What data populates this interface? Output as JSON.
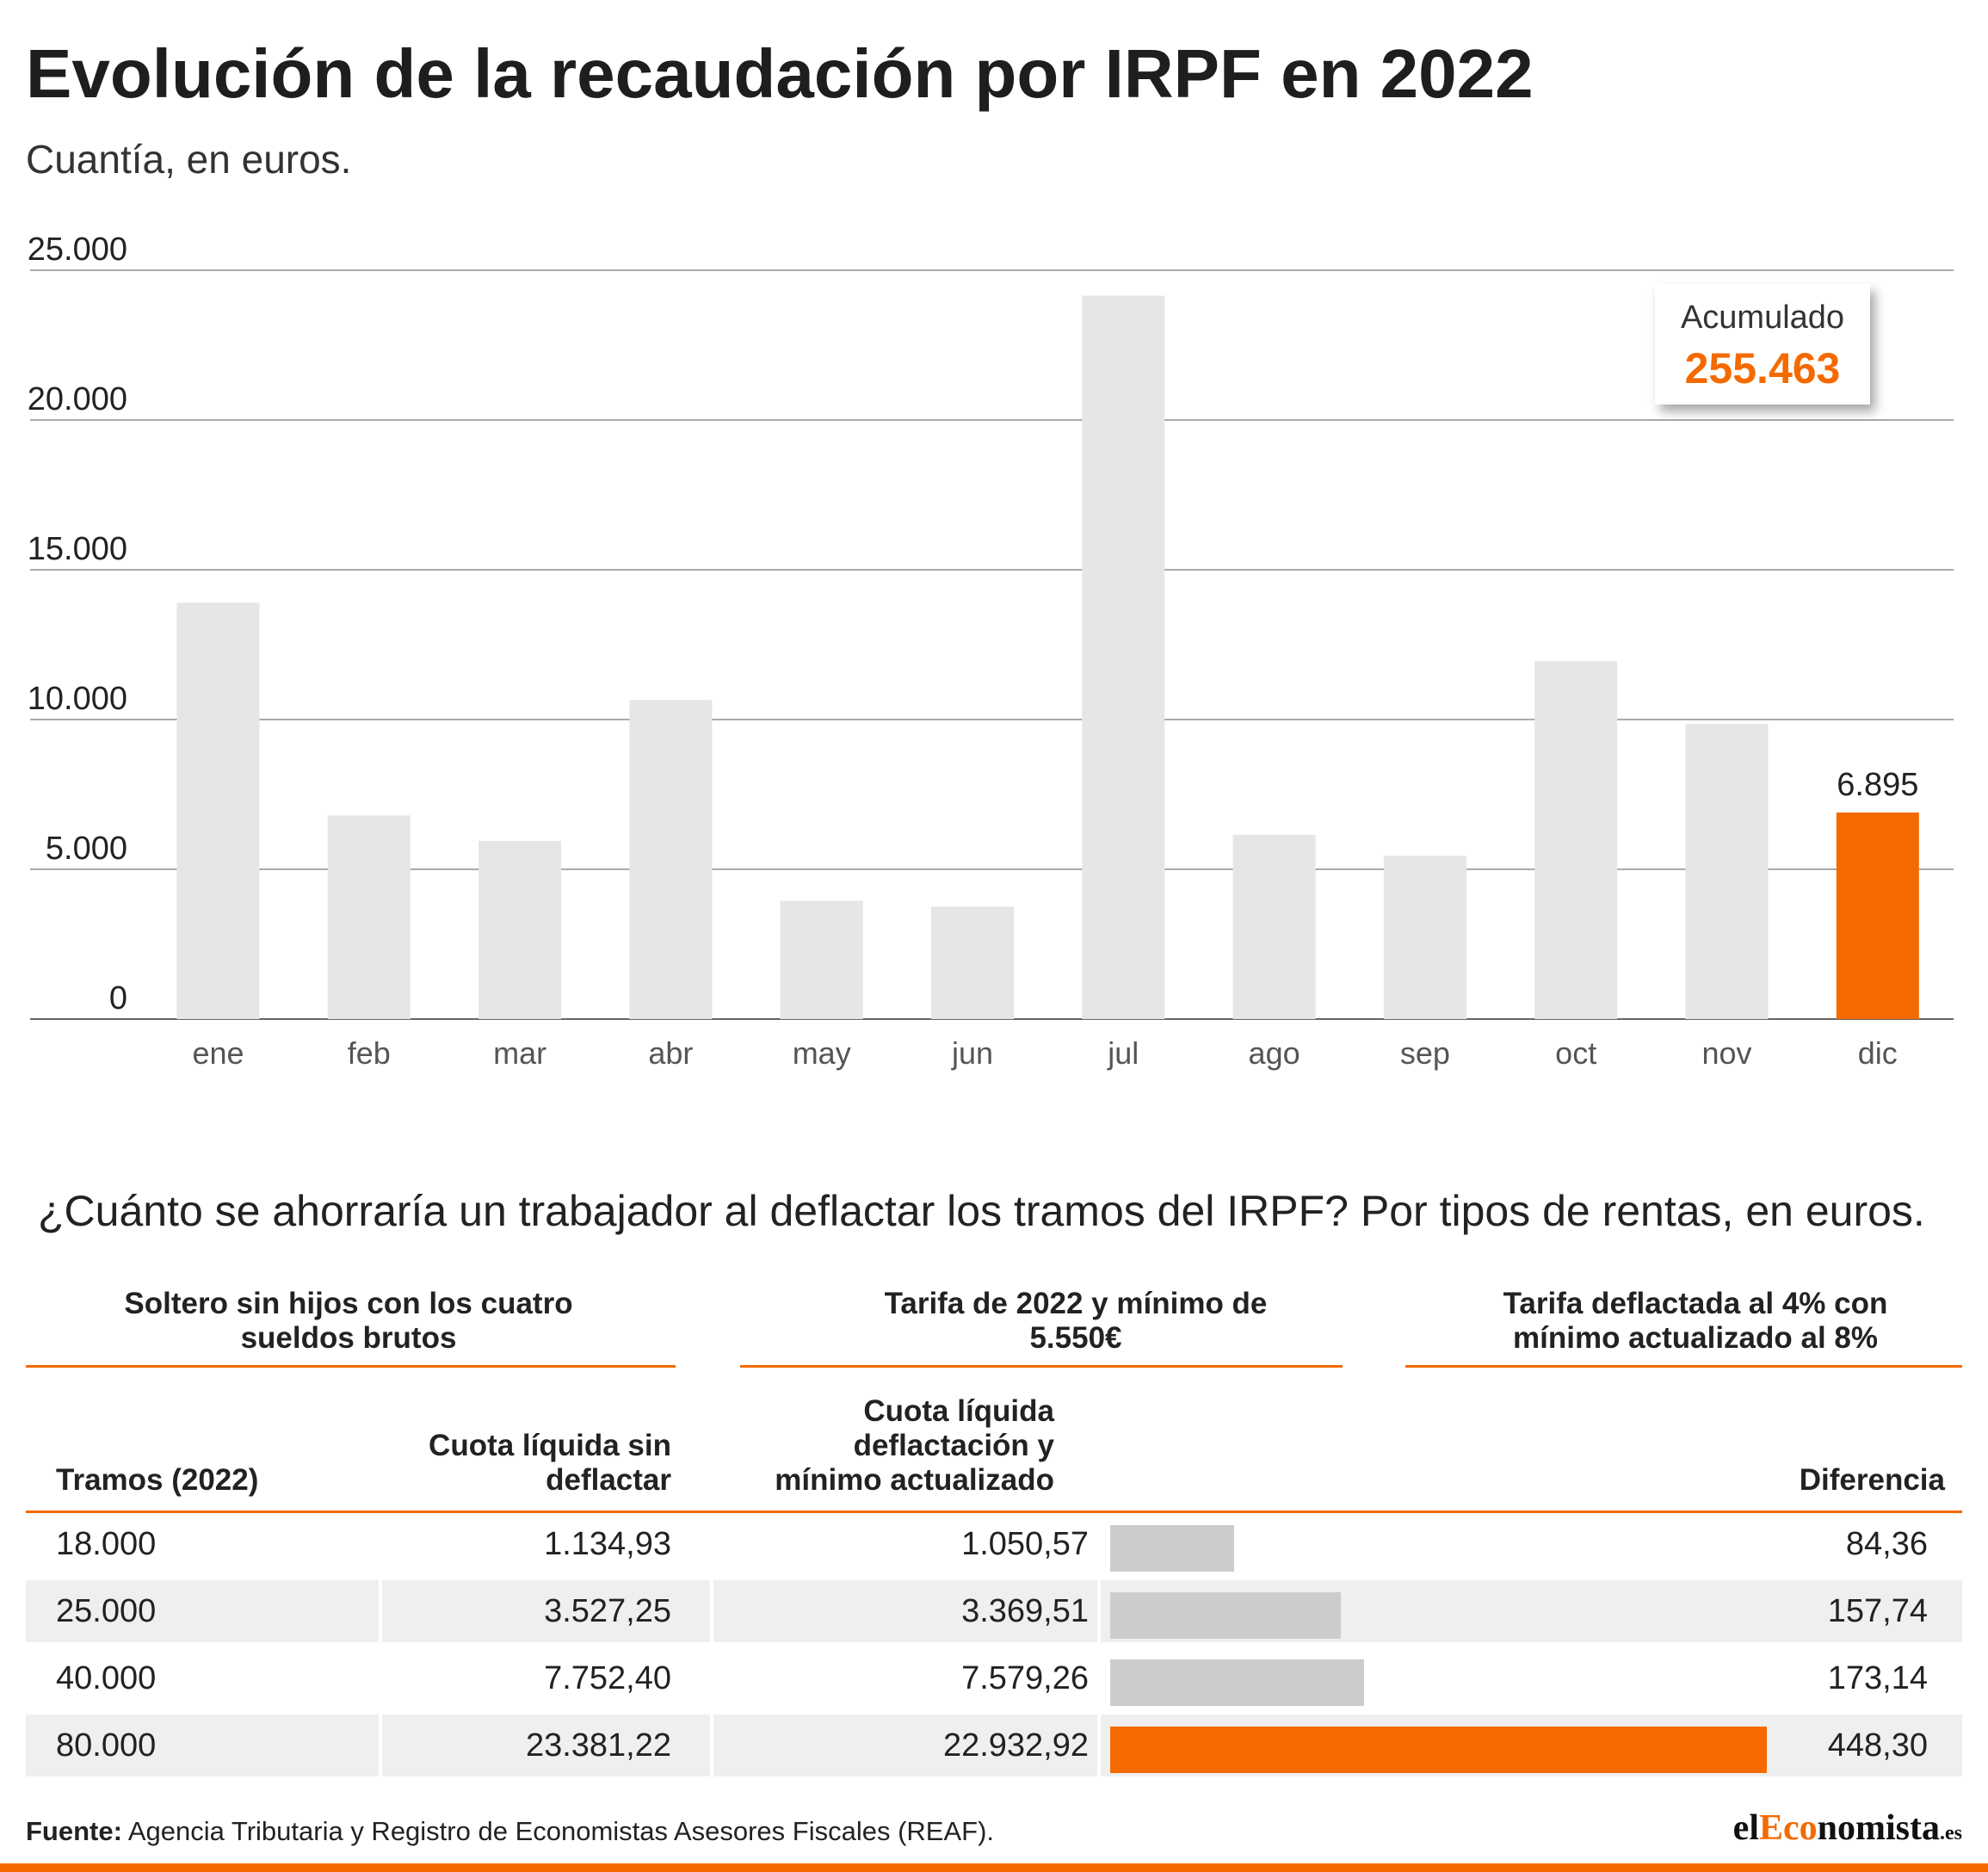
{
  "title": "Evolución de la recaudación por IRPF en 2022",
  "subtitle": "Cuantía, en euros.",
  "colors": {
    "bar": "#e6e6e6",
    "highlight": "#f56a00",
    "diff_bar": "#cccccc"
  },
  "acumulado": {
    "label": "Acumulado",
    "value": "255.463"
  },
  "chart_data": [
    {
      "type": "bar",
      "categories": [
        "ene",
        "feb",
        "mar",
        "abr",
        "may",
        "jun",
        "jul",
        "ago",
        "sep",
        "oct",
        "nov",
        "dic"
      ],
      "values": [
        13900,
        6800,
        5950,
        10650,
        3950,
        3750,
        24150,
        6150,
        5450,
        11950,
        9850,
        6895
      ],
      "highlight_index": 11,
      "data_labels": {
        "11": "6.895"
      },
      "yticks": [
        0,
        5000,
        10000,
        15000,
        20000,
        25000
      ],
      "ytick_labels": [
        "0",
        "5.000",
        "10.000",
        "15.000",
        "20.000",
        "25.000"
      ],
      "ylim": [
        0,
        25000
      ],
      "grid": true
    },
    {
      "type": "bar",
      "orientation": "horizontal",
      "categories": [
        "18.000",
        "25.000",
        "40.000",
        "80.000"
      ],
      "values": [
        84.36,
        157.74,
        173.14,
        448.3
      ],
      "highlight_index": 3
    }
  ],
  "table": {
    "title": "¿Cuánto se ahorraría un trabajador al deflactar los tramos del IRPF? Por tipos de rentas, en euros.",
    "groups": [
      "Soltero sin hijos con los cuatro sueldos brutos",
      "Tarifa de 2022 y mínimo de 5.550€",
      "Tarifa deflactada al 4% con mínimo actualizado al 8%"
    ],
    "headers": {
      "tramos": "Tramos (2022)",
      "cuota_sin": "Cuota líquida sin deflactar",
      "cuota_con": "Cuota líquida deflactación y mínimo actualizado",
      "diferencia": "Diferencia"
    },
    "rows": [
      {
        "tramo": "18.000",
        "sin": "1.134,93",
        "con": "1.050,57",
        "diff": "84,36"
      },
      {
        "tramo": "25.000",
        "sin": "3.527,25",
        "con": "3.369,51",
        "diff": "157,74"
      },
      {
        "tramo": "40.000",
        "sin": "7.752,40",
        "con": "7.579,26",
        "diff": "173,14"
      },
      {
        "tramo": "80.000",
        "sin": "23.381,22",
        "con": "22.932,92",
        "diff": "448,30"
      }
    ]
  },
  "source": {
    "label": "Fuente:",
    "text": " Agencia Tributaria y Registro de Economistas Asesores Fiscales (REAF)."
  },
  "logo": {
    "part1": "el",
    "part2": "Eco",
    "part3": "nomista",
    "part4": ".es"
  }
}
